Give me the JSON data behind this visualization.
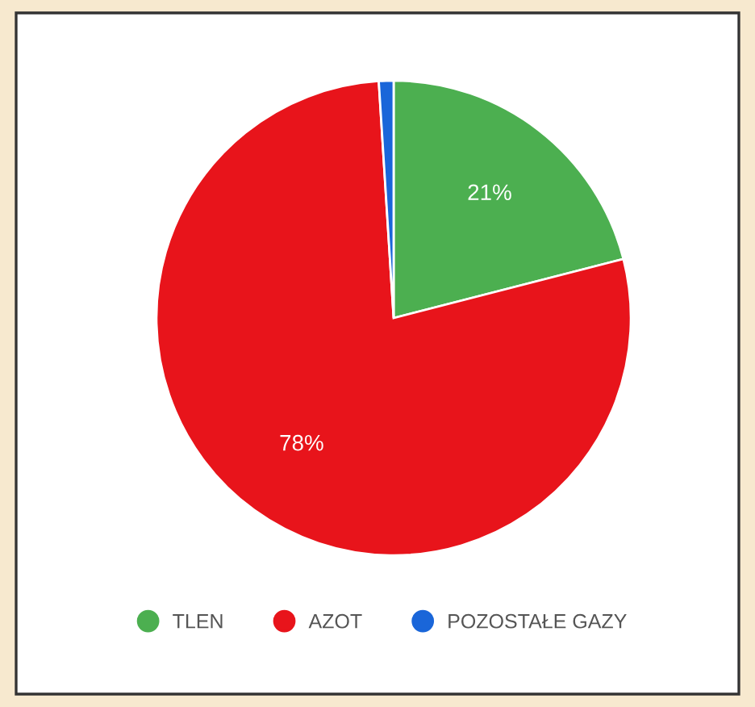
{
  "chart_data": {
    "type": "pie",
    "categories": [
      "TLEN",
      "AZOT",
      "POZOSTAŁE GAZY"
    ],
    "values": [
      21,
      78,
      1
    ],
    "colors": [
      "#4caf50",
      "#e8141b",
      "#1a66d9"
    ],
    "value_labels": [
      "21%",
      "78%",
      null
    ],
    "legend": "bottom"
  }
}
